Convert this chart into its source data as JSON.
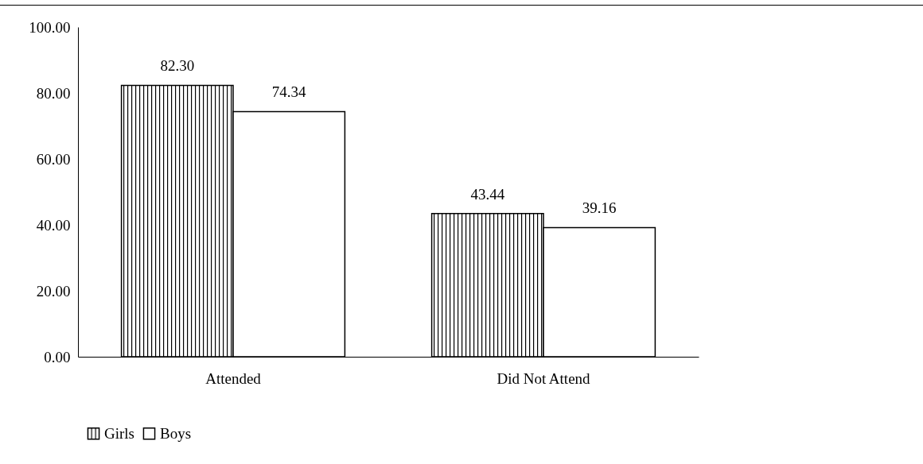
{
  "chart_data": {
    "type": "bar",
    "categories": [
      "Attended",
      "Did Not Attend"
    ],
    "series": [
      {
        "name": "Girls",
        "color": "#000000",
        "values": [
          82.3,
          43.44
        ],
        "value_labels": [
          "82.30",
          "43.44"
        ]
      },
      {
        "name": "Boys",
        "color": "#ffffff",
        "values": [
          74.34,
          39.16
        ],
        "value_labels": [
          "74.34",
          "39.16"
        ]
      }
    ],
    "ylim": [
      0,
      100
    ],
    "yticks": [
      {
        "value": 0,
        "label": "0.00"
      },
      {
        "value": 20,
        "label": "20.00"
      },
      {
        "value": 40,
        "label": "40.00"
      },
      {
        "value": 60,
        "label": "60.00"
      },
      {
        "value": 80,
        "label": "80.00"
      },
      {
        "value": 100,
        "label": "100.00"
      }
    ],
    "grid": false,
    "legend": "bottom"
  }
}
